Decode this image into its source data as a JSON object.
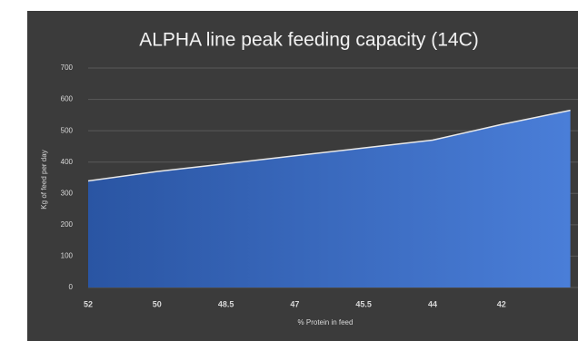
{
  "chart_data": {
    "type": "area",
    "title": "ALPHA line peak feeding capacity (14C)",
    "x_label": "% Protein in feed",
    "y_label": "Kg of feed per day",
    "categories": [
      "52",
      "50",
      "48.5",
      "47",
      "45.5",
      "44",
      "42",
      null
    ],
    "values": [
      340,
      370,
      395,
      420,
      445,
      470,
      520,
      565
    ],
    "color": "#3a6cc4",
    "ylim": [
      0,
      700
    ],
    "yticks": [
      0,
      100,
      200,
      300,
      400,
      500,
      600,
      700
    ],
    "grid": true
  }
}
